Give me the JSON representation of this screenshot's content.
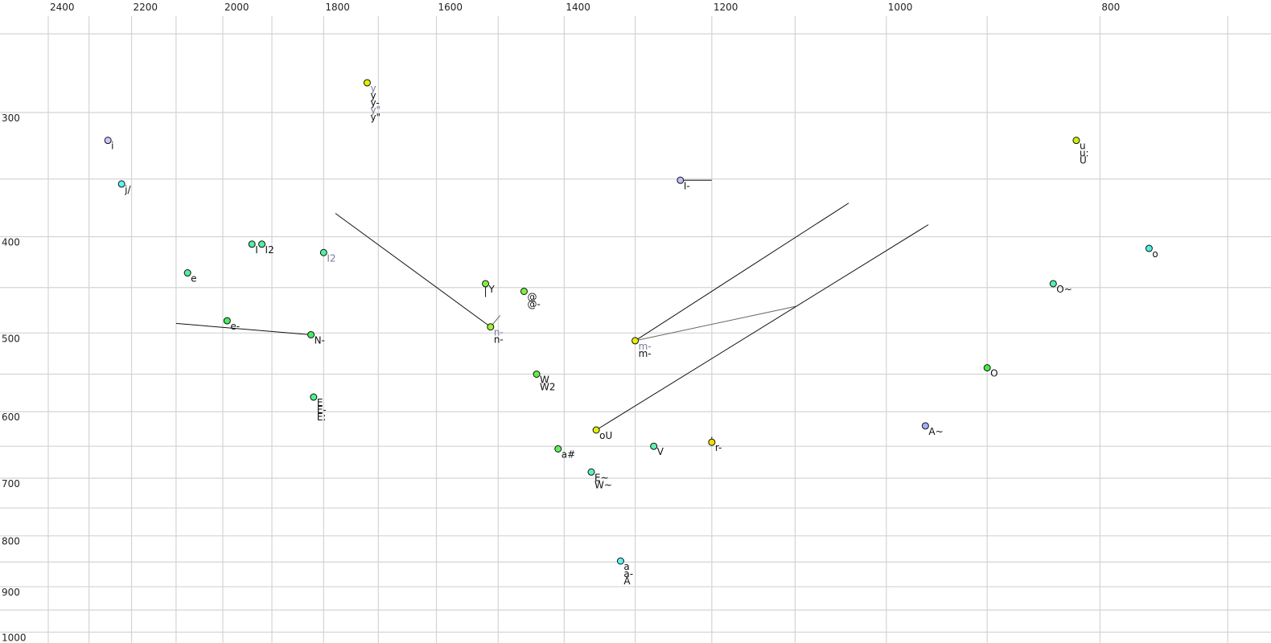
{
  "chart_data": {
    "type": "scatter",
    "x_scale": "log",
    "y_scale": "log",
    "x_reversed": true,
    "xlim": [
      2400,
      700
    ],
    "ylim": [
      250,
      1000
    ],
    "grid": true,
    "x_ticks": [
      2400,
      2200,
      2000,
      1800,
      1600,
      1400,
      1200,
      1000,
      800
    ],
    "y_ticks": [
      300,
      400,
      500,
      600,
      700,
      800,
      900,
      1000
    ],
    "points": [
      {
        "x": 2255,
        "y": 320,
        "color": "#c8c8ff",
        "labels": [
          {
            "t": "i"
          }
        ]
      },
      {
        "x": 2223,
        "y": 354,
        "color": "#60f0f0",
        "labels": [
          {
            "t": "j/"
          }
        ]
      },
      {
        "x": 2075,
        "y": 435,
        "color": "#50f0a0",
        "labels": [
          {
            "t": "e"
          }
        ]
      },
      {
        "x": 1940,
        "y": 407,
        "color": "#50f0a0",
        "labels": [
          {
            "t": "I"
          }
        ]
      },
      {
        "x": 1920,
        "y": 407,
        "color": "#50f0a0",
        "labels": [
          {
            "t": "I2"
          }
        ]
      },
      {
        "x": 1800,
        "y": 415,
        "color": "#50f0a0",
        "labels": [
          {
            "t": "I2",
            "gray": true
          }
        ]
      },
      {
        "x": 1720,
        "y": 280,
        "color": "#e0f000",
        "labels": [
          {
            "t": "y",
            "gray": true
          },
          {
            "t": "y"
          },
          {
            "t": "y-"
          },
          {
            "t": "y\"",
            "gray": true
          },
          {
            "t": "y\""
          }
        ]
      },
      {
        "x": 1991,
        "y": 486,
        "color": "#40f060",
        "labels": [
          {
            "t": "e-"
          }
        ]
      },
      {
        "x": 1824,
        "y": 502,
        "color": "#40f060",
        "labels": [
          {
            "t": "N-"
          }
        ]
      },
      {
        "x": 1819,
        "y": 580,
        "color": "#50f090",
        "labels": [
          {
            "t": "E"
          },
          {
            "t": "E-"
          },
          {
            "t": "E:"
          }
        ]
      },
      {
        "x": 1520,
        "y": 446,
        "color": "#80f040",
        "labels": [
          {
            "t": "Y"
          }
        ]
      },
      {
        "x": 1460,
        "y": 454,
        "color": "#80f040",
        "labels": [
          {
            "t": "@"
          },
          {
            "t": "@-"
          }
        ]
      },
      {
        "x": 1512,
        "y": 493,
        "color": "#a0f030",
        "labels": [
          {
            "t": "n-",
            "gray": true
          },
          {
            "t": "n-"
          }
        ]
      },
      {
        "x": 1441,
        "y": 550,
        "color": "#60f040",
        "labels": [
          {
            "t": "W"
          },
          {
            "t": "W2"
          }
        ]
      },
      {
        "x": 1300,
        "y": 509,
        "color": "#e8f000",
        "labels": [
          {
            "t": "m-",
            "gray": true
          },
          {
            "t": "m-"
          }
        ]
      },
      {
        "x": 1354,
        "y": 626,
        "color": "#e0f000",
        "labels": [
          {
            "t": "oU"
          }
        ]
      },
      {
        "x": 1409,
        "y": 654,
        "color": "#60f060",
        "labels": [
          {
            "t": "a#"
          }
        ]
      },
      {
        "x": 1361,
        "y": 690,
        "color": "#60f0c0",
        "labels": [
          {
            "t": "E~"
          },
          {
            "t": "W~"
          }
        ]
      },
      {
        "x": 1275,
        "y": 650,
        "color": "#60f0b0",
        "labels": [
          {
            "t": "V"
          }
        ]
      },
      {
        "x": 1200,
        "y": 644,
        "color": "#f0e000",
        "labels": [
          {
            "t": "r-"
          }
        ]
      },
      {
        "x": 1320,
        "y": 848,
        "color": "#60f0f0",
        "labels": [
          {
            "t": "a"
          },
          {
            "t": "a-"
          },
          {
            "t": "A"
          }
        ]
      },
      {
        "x": 1240,
        "y": 351,
        "color": "#c0c0ff",
        "labels": [
          {
            "t": "I-"
          }
        ]
      },
      {
        "x": 960,
        "y": 620,
        "color": "#a0b0ff",
        "labels": [
          {
            "t": "A~"
          }
        ]
      },
      {
        "x": 900,
        "y": 542,
        "color": "#40f040",
        "labels": [
          {
            "t": "O"
          }
        ]
      },
      {
        "x": 840,
        "y": 446,
        "color": "#50f0b0",
        "labels": [
          {
            "t": "O~"
          }
        ]
      },
      {
        "x": 820,
        "y": 320,
        "color": "#d0f000",
        "labels": [
          {
            "t": "u"
          },
          {
            "t": "u:"
          },
          {
            "t": "U"
          }
        ]
      },
      {
        "x": 760,
        "y": 411,
        "color": "#50f0e0",
        "labels": [
          {
            "t": "o"
          }
        ]
      }
    ],
    "trajectories": [
      {
        "from": [
          2100,
          489
        ],
        "to": [
          1824,
          502
        ]
      },
      {
        "from": [
          1778,
          379
        ],
        "to": [
          1512,
          493
        ]
      },
      {
        "from": [
          1512,
          493
        ],
        "to": [
          1497,
          480
        ],
        "gray": true
      },
      {
        "from": [
          1300,
          509
        ],
        "to": [
          1040,
          370
        ]
      },
      {
        "from": [
          1300,
          509
        ],
        "to": [
          1099,
          470
        ],
        "gray": true
      },
      {
        "from": [
          1354,
          626
        ],
        "to": [
          957,
          389
        ]
      },
      {
        "from": [
          1240,
          351
        ],
        "to": [
          1200,
          351
        ]
      },
      {
        "from": [
          1520,
          446
        ],
        "to": [
          1520,
          460
        ]
      },
      {
        "from": [
          1200,
          644
        ],
        "to": [
          1200,
          636
        ]
      }
    ]
  }
}
